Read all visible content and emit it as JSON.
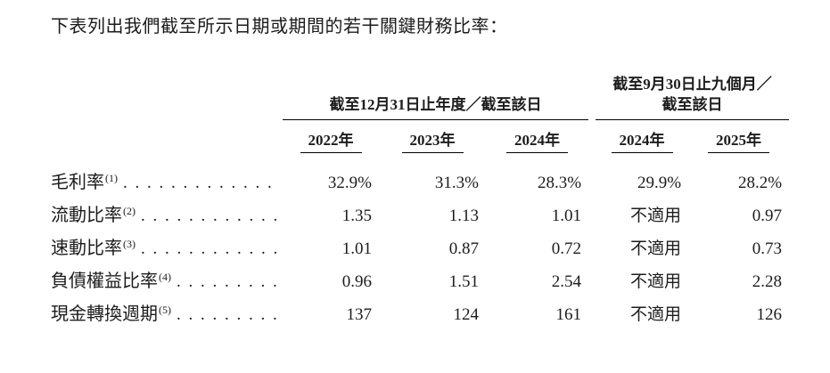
{
  "page": {
    "intro": "下表列出我們截至所示日期或期間的若干關鍵財務比率："
  },
  "table": {
    "group1": {
      "title": "截至12月31日止年度／截至該日",
      "years": [
        "2022年",
        "2023年",
        "2024年"
      ]
    },
    "group2": {
      "title_line1": "截至9月30日止九個月／",
      "title_line2": "截至該日",
      "years": [
        "2024年",
        "2025年"
      ]
    },
    "rows": [
      {
        "label": "毛利率",
        "note": "(1)",
        "dots": ". . . . . . . . . . . . . . . . . . . .",
        "values": [
          "32.9%",
          "31.3%",
          "28.3%",
          "29.9%",
          "28.2%"
        ]
      },
      {
        "label": "流動比率",
        "note": "(2)",
        "dots": ". . . . . . . . . . . . . . . . . . . .",
        "values": [
          "1.35",
          "1.13",
          "1.01",
          "不適用",
          "0.97"
        ]
      },
      {
        "label": "速動比率",
        "note": "(3)",
        "dots": ". . . . . . . . . . . . . . . . . . . .",
        "values": [
          "1.01",
          "0.87",
          "0.72",
          "不適用",
          "0.73"
        ]
      },
      {
        "label": "負債權益比率",
        "note": "(4)",
        "dots": ". . . . . . . . . . . . . . . . . . . .",
        "values": [
          "0.96",
          "1.51",
          "2.54",
          "不適用",
          "2.28"
        ]
      },
      {
        "label": "現金轉換週期",
        "note": "(5)",
        "dots": ". . . . . . . . . . . . . . . . . . . .",
        "values": [
          "137",
          "124",
          "161",
          "不適用",
          "126"
        ]
      }
    ]
  },
  "colors": {
    "text": "#1c1c1c",
    "rule": "#000000",
    "background": "#ffffff"
  }
}
